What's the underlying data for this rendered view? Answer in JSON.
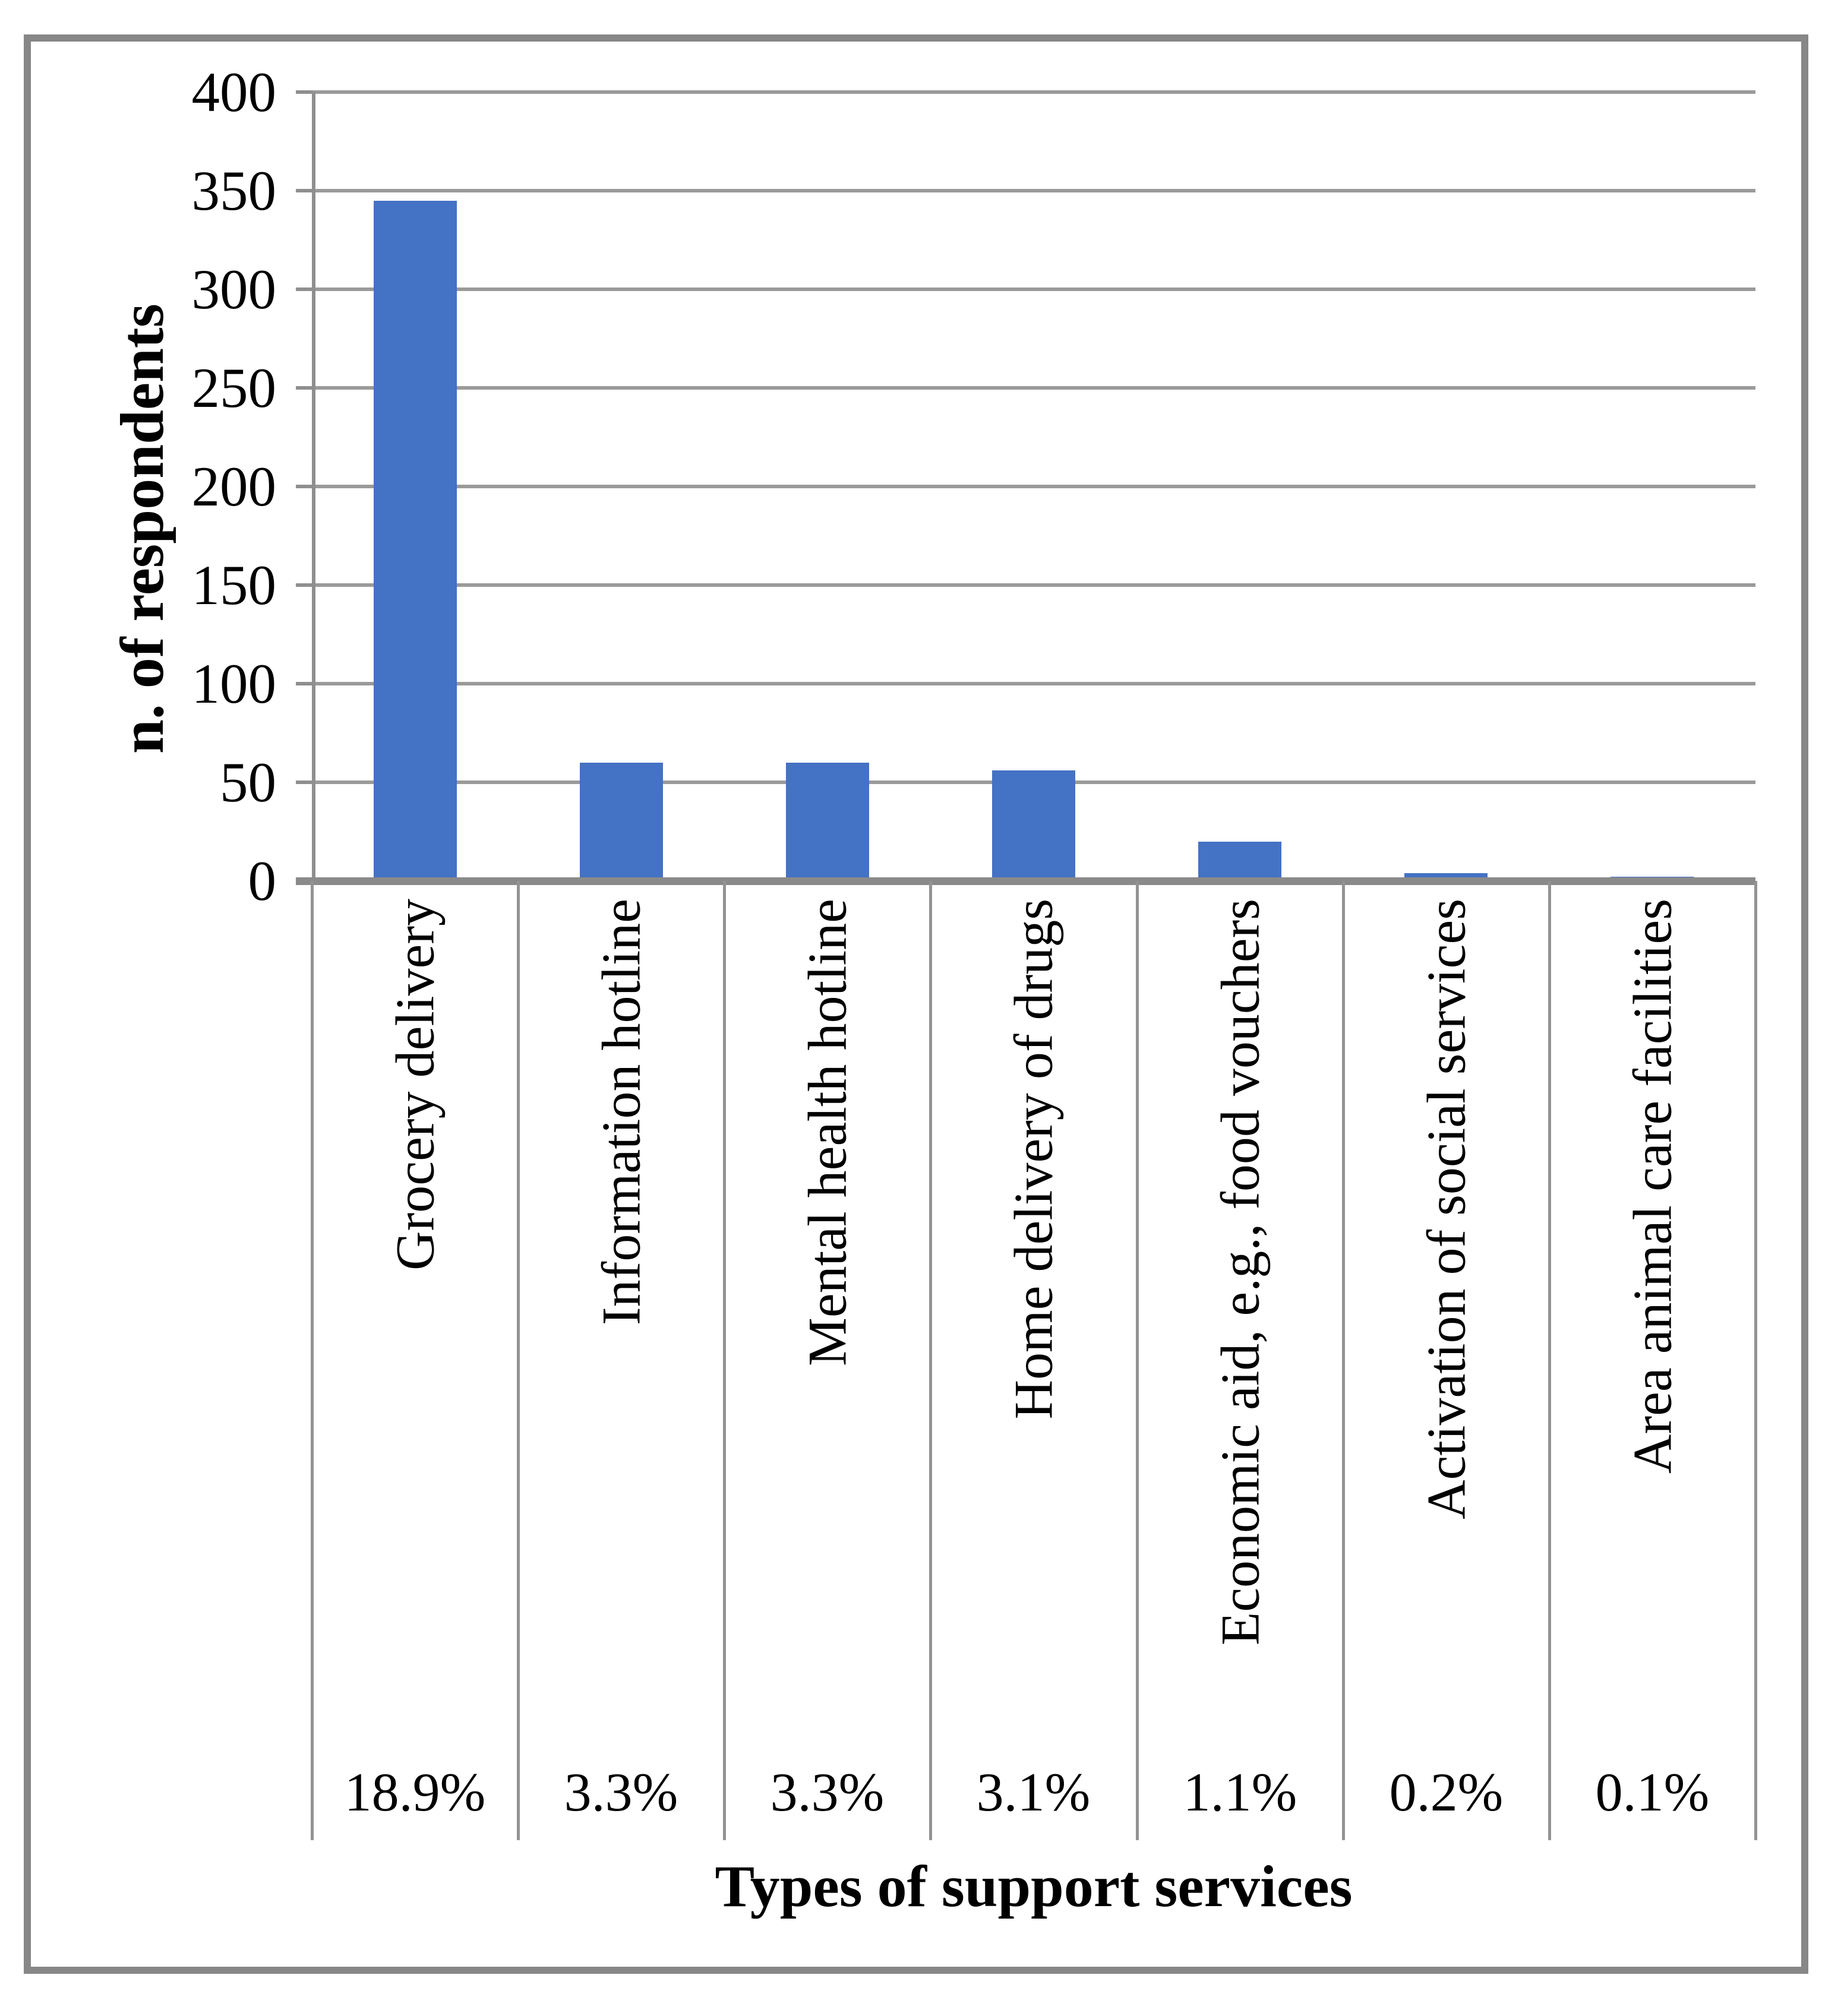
{
  "chart_data": {
    "type": "bar",
    "title": "",
    "xlabel": "Types of support services",
    "ylabel": "n. of respondents",
    "categories": [
      "Grocery delivery",
      "Information hotline",
      "Mental health hotline",
      "Home delivery of drugs",
      "Economic aid, e.g., food vouchers",
      "Activation of social services",
      "Area animal care facilities"
    ],
    "values": [
      345,
      60,
      60,
      56,
      20,
      4,
      2
    ],
    "percent_labels": [
      "18.9%",
      "3.3%",
      "3.3%",
      "3.1%",
      "1.1%",
      "0.2%",
      "0.1%"
    ],
    "ylim": [
      0,
      400
    ],
    "yticks": [
      0,
      50,
      100,
      150,
      200,
      250,
      300,
      350,
      400
    ],
    "grid": true,
    "legend": false,
    "bar_color": "#4472C4",
    "grid_color": "#9A9A9A",
    "axis_color": "#8F8F8F",
    "frame_color": "#878787"
  }
}
